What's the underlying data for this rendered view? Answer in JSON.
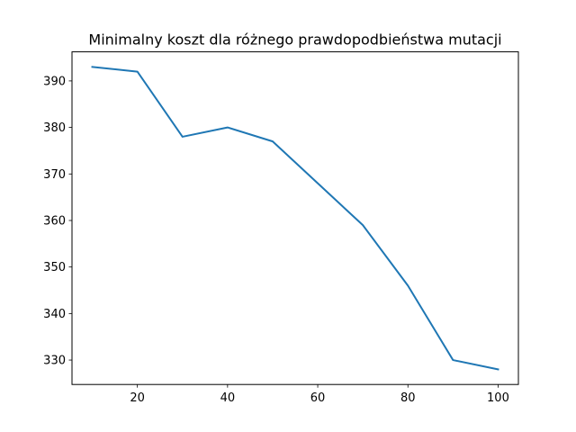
{
  "chart_data": {
    "type": "line",
    "title": "Minimalny koszt dla różnego prawdopodbieństwa mutacji",
    "xlabel": "",
    "ylabel": "",
    "x": [
      10,
      20,
      30,
      40,
      50,
      60,
      70,
      80,
      90,
      100
    ],
    "series": [
      {
        "values": [
          393,
          392,
          378,
          380,
          377,
          368,
          359,
          346,
          330,
          328
        ],
        "color": "#1f77b4"
      }
    ],
    "xlim": [
      5.5,
      104.5
    ],
    "ylim": [
      324.75,
      396.25
    ],
    "xticks": [
      20,
      40,
      60,
      80,
      100
    ],
    "yticks": [
      330,
      340,
      350,
      360,
      370,
      380,
      390
    ],
    "grid": false,
    "legend": "none"
  }
}
